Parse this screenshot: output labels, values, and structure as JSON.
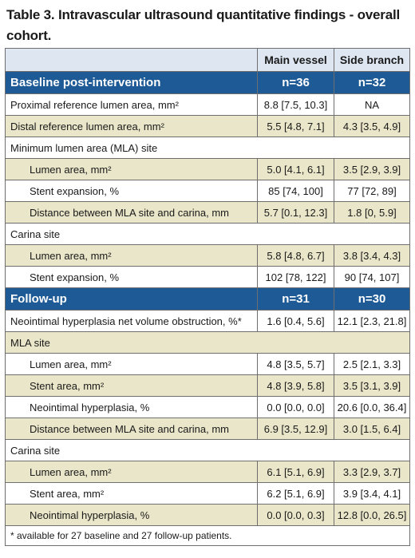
{
  "title": "Table 3. Intravascular ultrasound quantitative findings - overall cohort.",
  "header": {
    "blank": "",
    "col1": "Main vessel",
    "col2": "Side branch"
  },
  "sections": [
    {
      "label": "Baseline post-intervention",
      "n1": "n=36",
      "n2": "n=32",
      "rows": [
        {
          "label": "Proximal reference lumen area, mm²",
          "mv": "8.8 [7.5, 10.3]",
          "sb": "NA",
          "indent": false,
          "group": false
        },
        {
          "label": "Distal reference lumen area, mm²",
          "mv": "5.5 [4.8, 7.1]",
          "sb": "4.3 [3.5, 4.9]",
          "indent": false,
          "group": false
        },
        {
          "label": "Minimum lumen area (MLA) site",
          "mv": "",
          "sb": "",
          "indent": false,
          "group": true
        },
        {
          "label": "Lumen area, mm²",
          "mv": "5.0 [4.1, 6.1]",
          "sb": "3.5 [2.9, 3.9]",
          "indent": true,
          "group": false
        },
        {
          "label": "Stent expansion, %",
          "mv": "85 [74, 100]",
          "sb": "77 [72, 89]",
          "indent": true,
          "group": false
        },
        {
          "label": "Distance between MLA site and carina, mm",
          "mv": "5.7 [0.1, 12.3]",
          "sb": "1.8 [0, 5.9]",
          "indent": true,
          "group": false
        },
        {
          "label": "Carina site",
          "mv": "",
          "sb": "",
          "indent": false,
          "group": true
        },
        {
          "label": "Lumen area, mm²",
          "mv": "5.8 [4.8, 6.7]",
          "sb": "3.8 [3.4, 4.3]",
          "indent": true,
          "group": false
        },
        {
          "label": "Stent expansion, %",
          "mv": "102 [78, 122]",
          "sb": "90 [74, 107]",
          "indent": true,
          "group": false
        }
      ]
    },
    {
      "label": "Follow-up",
      "n1": "n=31",
      "n2": "n=30",
      "rows": [
        {
          "label": "Neointimal hyperplasia net volume obstruction, %*",
          "mv": "1.6 [0.4, 5.6]",
          "sb": "12.1 [2.3, 21.8]",
          "indent": false,
          "group": false
        },
        {
          "label": "MLA site",
          "mv": "",
          "sb": "",
          "indent": false,
          "group": true
        },
        {
          "label": "Lumen area, mm²",
          "mv": "4.8 [3.5, 5.7]",
          "sb": "2.5 [2.1, 3.3]",
          "indent": true,
          "group": false
        },
        {
          "label": "Stent area, mm²",
          "mv": "4.8 [3.9, 5.8]",
          "sb": "3.5 [3.1, 3.9]",
          "indent": true,
          "group": false
        },
        {
          "label": "Neointimal hyperplasia, %",
          "mv": "0.0 [0.0, 0.0]",
          "sb": "20.6 [0.0, 36.4]",
          "indent": true,
          "group": false
        },
        {
          "label": "Distance between MLA site and carina, mm",
          "mv": "6.9 [3.5, 12.9]",
          "sb": "3.0 [1.5, 6.4]",
          "indent": true,
          "group": false
        },
        {
          "label": "Carina site",
          "mv": "",
          "sb": "",
          "indent": false,
          "group": true
        },
        {
          "label": "Lumen area, mm²",
          "mv": "6.1 [5.1, 6.9]",
          "sb": "3.3 [2.9, 3.7]",
          "indent": true,
          "group": false
        },
        {
          "label": "Stent area, mm²",
          "mv": "6.2 [5.1, 6.9]",
          "sb": "3.9 [3.4, 4.1]",
          "indent": true,
          "group": false
        },
        {
          "label": "Neointimal hyperplasia, %",
          "mv": "0.0 [0.0, 0.3]",
          "sb": "12.8 [0.0, 26.5]",
          "indent": true,
          "group": false
        }
      ]
    }
  ],
  "footnote": "* available for 27 baseline and 27 follow-up patients.",
  "colors": {
    "section": "#1e5b96",
    "header": "#dde6f1",
    "beige": "#eae6c9",
    "border": "#6e6e6e"
  }
}
